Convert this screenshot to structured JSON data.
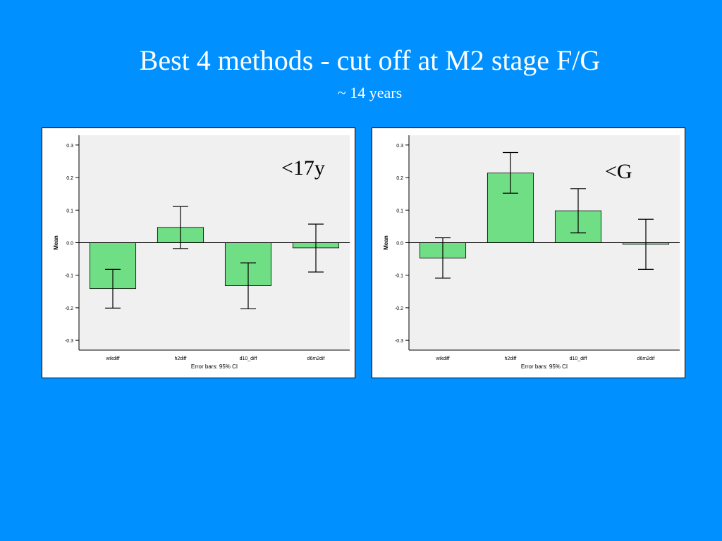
{
  "slide": {
    "title": "Best 4 methods - cut off at M2 stage F/G",
    "subtitle": "~ 14 years",
    "background_color": "#0090ff"
  },
  "chart_data": [
    {
      "type": "bar",
      "annotation": "<17y",
      "categories": [
        "wikdiff",
        "h2diff",
        "d10_diff",
        "d6m2dif"
      ],
      "values": [
        -0.141,
        0.047,
        -0.132,
        -0.016
      ],
      "error_low": [
        -0.201,
        -0.018,
        -0.203,
        -0.09
      ],
      "error_high": [
        -0.082,
        0.111,
        -0.062,
        0.057
      ],
      "ylabel": "Mean",
      "xlabel": "Error bars: 95% CI",
      "ylim": [
        -0.33,
        0.33
      ],
      "yticks": [
        "0.3",
        "0.2",
        "0.1",
        "0.0",
        "-0.1",
        "-0.2",
        "-0.3"
      ],
      "bar_color": "#70de84",
      "plot_background": "#f0f0f0",
      "grid": false
    },
    {
      "type": "bar",
      "annotation": "<G",
      "categories": [
        "wikdiff",
        "h2diff",
        "d10_diff",
        "d6m2dif"
      ],
      "values": [
        -0.047,
        0.214,
        0.098,
        -0.005
      ],
      "error_low": [
        -0.109,
        0.152,
        0.03,
        -0.082
      ],
      "error_high": [
        0.015,
        0.277,
        0.166,
        0.072
      ],
      "ylabel": "Mean",
      "xlabel": "Error bars: 95% CI",
      "ylim": [
        -0.33,
        0.33
      ],
      "yticks": [
        "0.3",
        "0.2",
        "0.1",
        "0.0",
        "-0.1",
        "-0.2",
        "-0.3"
      ],
      "bar_color": "#70de84",
      "plot_background": "#f0f0f0",
      "grid": false
    }
  ]
}
